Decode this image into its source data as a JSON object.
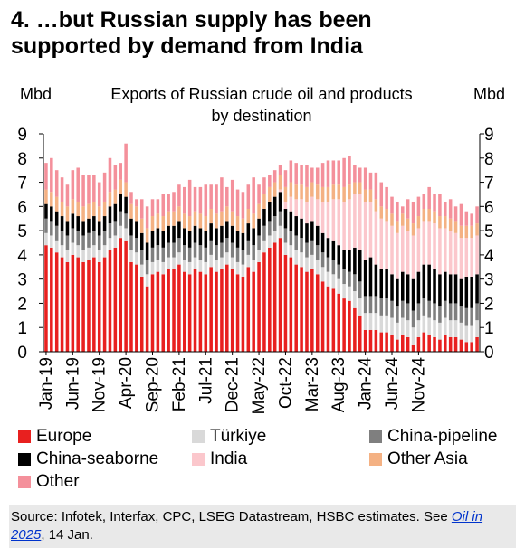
{
  "title": {
    "line1": "4. …but Russian supply has been",
    "line2": "supported by demand from India"
  },
  "source": {
    "text": "Source: Infotek, Interfax, CPC, LSEG Datastream, HSBC estimates. See ",
    "link": "Oil in 2025",
    "tail": ", 14 Jan."
  },
  "chart_data": {
    "type": "bar",
    "stacked": true,
    "title": "Exports of Russian crude oil and products by destination",
    "title_lines": [
      "Exports of Russian  crude oil and products",
      "by destination"
    ],
    "ylabel_left": "Mbd",
    "ylabel_right": "Mbd",
    "ylim": [
      0,
      9
    ],
    "yticks": [
      0,
      1,
      2,
      3,
      4,
      5,
      6,
      7,
      8,
      9
    ],
    "x_tick_labels": [
      "Jan-19",
      "Jun-19",
      "Nov-19",
      "Apr-20",
      "Sep-20",
      "Feb-21",
      "Jul-21",
      "Dec-21",
      "May-22",
      "Oct-22",
      "Mar-23",
      "Aug-23",
      "Jan-24",
      "Jun-24",
      "Nov-24"
    ],
    "legend_position": "bottom",
    "gridlines": false,
    "series": [
      {
        "name": "Europe",
        "color": "#e8201f",
        "values": [
          4.4,
          4.3,
          4.1,
          3.9,
          3.7,
          4.0,
          3.9,
          3.7,
          3.8,
          3.9,
          3.7,
          3.9,
          4.2,
          4.3,
          4.7,
          4.6,
          3.7,
          3.6,
          3.1,
          2.7,
          3.2,
          3.3,
          3.2,
          3.4,
          3.4,
          3.6,
          3.3,
          3.2,
          3.4,
          3.3,
          3.2,
          3.5,
          3.3,
          3.4,
          3.6,
          3.4,
          3.2,
          3.1,
          3.5,
          3.3,
          3.7,
          4.1,
          4.3,
          4.5,
          4.7,
          4.0,
          3.9,
          3.6,
          3.5,
          3.3,
          3.4,
          3.2,
          2.9,
          2.7,
          2.6,
          2.4,
          2.2,
          2.1,
          1.8,
          1.5,
          0.9,
          0.9,
          0.9,
          0.8,
          0.8,
          0.7,
          0.5,
          0.7,
          0.6,
          0.3,
          0.6,
          0.8,
          0.7,
          0.6,
          0.5,
          0.7,
          0.6,
          0.6,
          0.5,
          0.4,
          0.4,
          0.6
        ]
      },
      {
        "name": "Türkiye",
        "color": "#d9d9d9",
        "values": [
          0.5,
          0.5,
          0.5,
          0.5,
          0.5,
          0.5,
          0.5,
          0.5,
          0.5,
          0.5,
          0.5,
          0.5,
          0.5,
          0.5,
          0.5,
          0.5,
          0.5,
          0.5,
          0.5,
          0.5,
          0.5,
          0.5,
          0.5,
          0.5,
          0.5,
          0.5,
          0.5,
          0.5,
          0.5,
          0.5,
          0.5,
          0.5,
          0.5,
          0.5,
          0.5,
          0.5,
          0.5,
          0.5,
          0.5,
          0.5,
          0.5,
          0.5,
          0.5,
          0.5,
          0.5,
          0.5,
          0.5,
          0.6,
          0.6,
          0.6,
          0.6,
          0.6,
          0.6,
          0.6,
          0.6,
          0.6,
          0.6,
          0.6,
          0.7,
          0.7,
          0.7,
          0.7,
          0.7,
          0.7,
          0.7,
          0.7,
          0.7,
          0.7,
          0.7,
          0.7,
          0.7,
          0.7,
          0.7,
          0.7,
          0.7,
          0.7,
          0.7,
          0.7,
          0.7,
          0.7,
          0.7,
          0.7
        ]
      },
      {
        "name": "China-pipeline",
        "color": "#7f7f7f",
        "values": [
          0.6,
          0.6,
          0.6,
          0.6,
          0.6,
          0.6,
          0.6,
          0.6,
          0.6,
          0.6,
          0.6,
          0.6,
          0.6,
          0.6,
          0.6,
          0.6,
          0.6,
          0.6,
          0.6,
          0.6,
          0.6,
          0.6,
          0.6,
          0.6,
          0.6,
          0.6,
          0.6,
          0.6,
          0.6,
          0.6,
          0.6,
          0.6,
          0.6,
          0.6,
          0.6,
          0.6,
          0.6,
          0.6,
          0.6,
          0.6,
          0.6,
          0.6,
          0.6,
          0.6,
          0.6,
          0.6,
          0.6,
          0.6,
          0.6,
          0.6,
          0.6,
          0.6,
          0.6,
          0.6,
          0.6,
          0.6,
          0.6,
          0.6,
          0.7,
          0.7,
          0.7,
          0.7,
          0.7,
          0.7,
          0.7,
          0.7,
          0.7,
          0.7,
          0.7,
          0.7,
          0.7,
          0.7,
          0.7,
          0.7,
          0.7,
          0.7,
          0.7,
          0.7,
          0.7,
          0.7,
          0.7,
          0.7
        ]
      },
      {
        "name": "China-seaborne",
        "color": "#000000",
        "values": [
          0.6,
          0.6,
          0.6,
          0.6,
          0.6,
          0.6,
          0.6,
          0.6,
          0.6,
          0.6,
          0.6,
          0.6,
          0.7,
          0.7,
          0.7,
          0.7,
          0.7,
          0.7,
          0.7,
          0.7,
          0.7,
          0.7,
          0.7,
          0.7,
          0.7,
          0.7,
          0.7,
          0.7,
          0.7,
          0.7,
          0.7,
          0.7,
          0.7,
          0.7,
          0.7,
          0.7,
          0.7,
          0.7,
          0.7,
          0.7,
          0.7,
          0.7,
          0.8,
          0.8,
          0.8,
          0.8,
          0.8,
          0.8,
          0.8,
          0.8,
          0.8,
          0.8,
          0.8,
          0.8,
          0.8,
          0.8,
          0.8,
          0.9,
          1.1,
          1.3,
          1.5,
          1.6,
          1.3,
          1.2,
          1.2,
          1.1,
          1.1,
          1.2,
          1.2,
          1.3,
          1.3,
          1.4,
          1.5,
          1.4,
          1.3,
          1.2,
          1.2,
          1.2,
          1.1,
          1.3,
          1.3,
          1.2
        ]
      },
      {
        "name": "India",
        "color": "#fbc7cc",
        "values": [
          0.0,
          0.0,
          0.0,
          0.0,
          0.0,
          0.0,
          0.0,
          0.0,
          0.0,
          0.0,
          0.0,
          0.0,
          0.0,
          0.0,
          0.0,
          0.0,
          0.0,
          0.0,
          0.0,
          0.0,
          0.0,
          0.0,
          0.0,
          0.0,
          0.0,
          0.0,
          0.0,
          0.0,
          0.0,
          0.0,
          0.0,
          0.0,
          0.0,
          0.0,
          0.0,
          0.0,
          0.0,
          0.0,
          0.0,
          0.0,
          0.0,
          0.0,
          0.0,
          0.0,
          0.1,
          0.3,
          0.6,
          0.7,
          0.8,
          0.9,
          1.0,
          1.1,
          1.3,
          1.5,
          1.7,
          1.9,
          2.0,
          2.1,
          2.2,
          2.3,
          2.4,
          2.3,
          2.2,
          2.1,
          2.0,
          2.0,
          1.9,
          1.9,
          1.8,
          1.8,
          1.8,
          1.8,
          1.8,
          1.9,
          1.9,
          1.8,
          1.8,
          1.7,
          1.7,
          1.6,
          1.6,
          1.6
        ]
      },
      {
        "name": "Other Asia",
        "color": "#f4b183",
        "values": [
          0.6,
          0.6,
          0.6,
          0.6,
          0.6,
          0.6,
          0.6,
          0.6,
          0.6,
          0.6,
          0.6,
          0.6,
          0.6,
          0.6,
          0.6,
          0.6,
          0.6,
          0.6,
          0.6,
          0.6,
          0.6,
          0.6,
          0.6,
          0.6,
          0.6,
          0.6,
          0.6,
          0.6,
          0.6,
          0.6,
          0.6,
          0.6,
          0.6,
          0.6,
          0.6,
          0.6,
          0.6,
          0.6,
          0.6,
          0.6,
          0.6,
          0.6,
          0.6,
          0.6,
          0.6,
          0.6,
          0.6,
          0.6,
          0.6,
          0.6,
          0.6,
          0.6,
          0.6,
          0.6,
          0.6,
          0.6,
          0.6,
          0.6,
          0.5,
          0.5,
          0.5,
          0.5,
          0.5,
          0.5,
          0.5,
          0.5,
          0.5,
          0.5,
          0.5,
          0.5,
          0.5,
          0.5,
          0.5,
          0.5,
          0.5,
          0.5,
          0.5,
          0.5,
          0.5,
          0.5,
          0.5,
          0.5
        ]
      },
      {
        "name": "Other",
        "color": "#f4909b",
        "values": [
          1.1,
          1.4,
          1.1,
          1.0,
          0.9,
          1.2,
          1.4,
          1.3,
          1.2,
          1.1,
          1.0,
          1.2,
          1.4,
          1.0,
          0.7,
          1.6,
          0.5,
          0.3,
          0.8,
          0.9,
          0.7,
          0.6,
          0.9,
          0.7,
          0.8,
          0.9,
          1.1,
          1.5,
          1.0,
          1.1,
          1.3,
          1.0,
          1.2,
          1.4,
          0.8,
          1.3,
          1.1,
          1.1,
          1.0,
          1.5,
          0.8,
          0.7,
          0.5,
          0.5,
          0.4,
          0.7,
          0.9,
          0.9,
          0.8,
          0.9,
          0.6,
          0.7,
          1.0,
          1.1,
          1.0,
          1.0,
          1.2,
          1.2,
          0.7,
          0.6,
          0.9,
          0.7,
          1.1,
          1.0,
          0.9,
          0.7,
          0.8,
          0.3,
          0.8,
          0.9,
          0.8,
          0.6,
          0.9,
          0.7,
          0.9,
          0.6,
          0.8,
          0.6,
          0.9,
          0.6,
          0.5,
          0.7
        ]
      }
    ]
  }
}
